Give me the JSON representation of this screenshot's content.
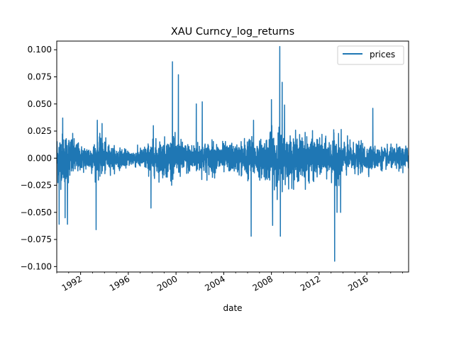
{
  "chart_data": {
    "type": "line",
    "title": "XAU Curncy_log_returns",
    "xlabel": "date",
    "ylabel": "",
    "xlim": [
      1990.0,
      2019.5
    ],
    "ylim": [
      -0.105,
      0.108
    ],
    "x_ticks": [
      1992,
      1996,
      2000,
      2004,
      2008,
      2012,
      2016
    ],
    "y_ticks": [
      -0.1,
      -0.075,
      -0.05,
      -0.025,
      0.0,
      0.025,
      0.05,
      0.075,
      0.1
    ],
    "y_tick_labels": [
      "−0.100",
      "−0.075",
      "−0.050",
      "−0.025",
      "0.000",
      "0.025",
      "0.050",
      "0.075",
      "0.100"
    ],
    "grid": false,
    "legend": {
      "position": "top-right",
      "entries": [
        "prices"
      ]
    },
    "series": [
      {
        "name": "prices",
        "color": "#1f77b4",
        "volatility_envelope": [
          {
            "x": 1990.0,
            "amp": 0.02
          },
          {
            "x": 1991.0,
            "amp": 0.02
          },
          {
            "x": 1992.0,
            "amp": 0.01
          },
          {
            "x": 1993.0,
            "amp": 0.012
          },
          {
            "x": 1993.5,
            "amp": 0.016
          },
          {
            "x": 1994.5,
            "amp": 0.01
          },
          {
            "x": 1996.0,
            "amp": 0.006
          },
          {
            "x": 1997.0,
            "amp": 0.008
          },
          {
            "x": 1998.0,
            "amp": 0.013
          },
          {
            "x": 1999.5,
            "amp": 0.016
          },
          {
            "x": 2001.0,
            "amp": 0.012
          },
          {
            "x": 2003.0,
            "amp": 0.013
          },
          {
            "x": 2005.0,
            "amp": 0.011
          },
          {
            "x": 2006.0,
            "amp": 0.017
          },
          {
            "x": 2007.0,
            "amp": 0.014
          },
          {
            "x": 2008.5,
            "amp": 0.024
          },
          {
            "x": 2009.5,
            "amp": 0.018
          },
          {
            "x": 2011.0,
            "amp": 0.018
          },
          {
            "x": 2012.5,
            "amp": 0.014
          },
          {
            "x": 2013.5,
            "amp": 0.019
          },
          {
            "x": 2014.5,
            "amp": 0.012
          },
          {
            "x": 2016.0,
            "amp": 0.011
          },
          {
            "x": 2017.5,
            "amp": 0.008
          },
          {
            "x": 2019.5,
            "amp": 0.01
          }
        ],
        "spikes": [
          {
            "x": 1990.2,
            "y": -0.061
          },
          {
            "x": 1990.5,
            "y": 0.037
          },
          {
            "x": 1990.7,
            "y": -0.055
          },
          {
            "x": 1990.9,
            "y": -0.061
          },
          {
            "x": 1993.3,
            "y": -0.066
          },
          {
            "x": 1993.4,
            "y": 0.035
          },
          {
            "x": 1993.8,
            "y": 0.032
          },
          {
            "x": 1997.9,
            "y": -0.046
          },
          {
            "x": 1998.1,
            "y": 0.03
          },
          {
            "x": 1999.7,
            "y": 0.089
          },
          {
            "x": 2000.2,
            "y": 0.077
          },
          {
            "x": 2001.7,
            "y": 0.05
          },
          {
            "x": 2002.2,
            "y": 0.052
          },
          {
            "x": 2006.3,
            "y": -0.072
          },
          {
            "x": 2006.5,
            "y": 0.035
          },
          {
            "x": 2008.0,
            "y": 0.054
          },
          {
            "x": 2008.1,
            "y": -0.062
          },
          {
            "x": 2008.7,
            "y": 0.103
          },
          {
            "x": 2008.75,
            "y": -0.072
          },
          {
            "x": 2008.9,
            "y": 0.07
          },
          {
            "x": 2009.1,
            "y": 0.049
          },
          {
            "x": 2013.3,
            "y": -0.095
          },
          {
            "x": 2013.5,
            "y": -0.05
          },
          {
            "x": 2013.8,
            "y": -0.05
          },
          {
            "x": 2016.5,
            "y": 0.046
          }
        ]
      }
    ]
  }
}
